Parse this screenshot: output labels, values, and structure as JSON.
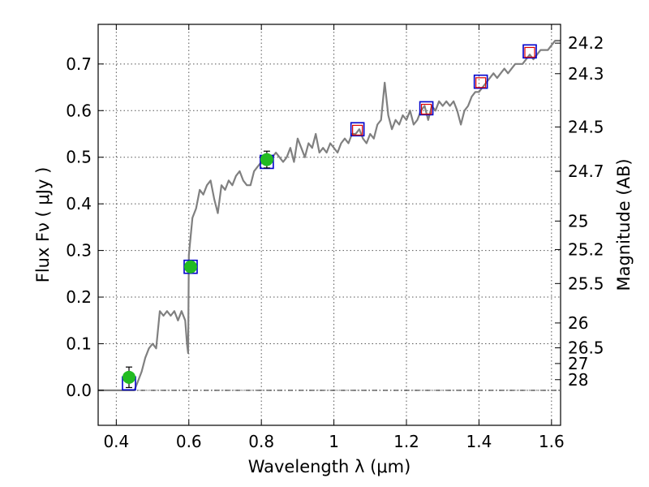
{
  "chart_data": {
    "type": "scatter",
    "xlabel": "Wavelength  λ (μm)",
    "ylabel": "Flux  Fν  ( μJy )",
    "y2label": "Magnitude (AB)",
    "xlim": [
      0.35,
      1.625
    ],
    "ylim": [
      -0.075,
      0.785
    ],
    "x_ticks": [
      0.4,
      0.6,
      0.8,
      1.0,
      1.2,
      1.4,
      1.6
    ],
    "x_tick_labels": [
      "0.4",
      "0.6",
      "0.8",
      "1",
      "1.2",
      "1.4",
      "1.6"
    ],
    "y_ticks": [
      0.0,
      0.1,
      0.2,
      0.3,
      0.4,
      0.5,
      0.6,
      0.7
    ],
    "y_tick_labels": [
      "0.0",
      "0.1",
      "0.2",
      "0.3",
      "0.4",
      "0.5",
      "0.6",
      "0.7"
    ],
    "mag_ticks": [
      {
        "label": "24.2",
        "flux": 0.7447
      },
      {
        "label": "24.3",
        "flux": 0.6792
      },
      {
        "label": "24.5",
        "flux": 0.5649
      },
      {
        "label": "24.7",
        "flux": 0.4699
      },
      {
        "label": "25",
        "flux": 0.3631
      },
      {
        "label": "25.2",
        "flux": 0.302
      },
      {
        "label": "25.5",
        "flux": 0.2291
      },
      {
        "label": "26",
        "flux": 0.1445
      },
      {
        "label": "26.5",
        "flux": 0.0912
      },
      {
        "label": "27",
        "flux": 0.0575
      },
      {
        "label": "28",
        "flux": 0.0229
      }
    ],
    "grid": true,
    "series": [
      {
        "kind": "line",
        "color": "#808080",
        "x": [
          0.35,
          0.41,
          0.43,
          0.45,
          0.46,
          0.47,
          0.48,
          0.49,
          0.5,
          0.51,
          0.52,
          0.53,
          0.54,
          0.55,
          0.56,
          0.57,
          0.58,
          0.59,
          0.595,
          0.598,
          0.6,
          0.605,
          0.61,
          0.62,
          0.63,
          0.64,
          0.65,
          0.66,
          0.67,
          0.68,
          0.69,
          0.7,
          0.71,
          0.72,
          0.73,
          0.74,
          0.75,
          0.76,
          0.77,
          0.78,
          0.79,
          0.8,
          0.81,
          0.82,
          0.83,
          0.84,
          0.85,
          0.86,
          0.87,
          0.88,
          0.89,
          0.9,
          0.91,
          0.92,
          0.93,
          0.94,
          0.95,
          0.96,
          0.97,
          0.98,
          0.99,
          1.0,
          1.01,
          1.02,
          1.03,
          1.04,
          1.05,
          1.06,
          1.07,
          1.08,
          1.09,
          1.1,
          1.11,
          1.12,
          1.13,
          1.14,
          1.15,
          1.16,
          1.17,
          1.18,
          1.19,
          1.2,
          1.21,
          1.22,
          1.23,
          1.24,
          1.25,
          1.26,
          1.27,
          1.28,
          1.29,
          1.3,
          1.31,
          1.32,
          1.33,
          1.34,
          1.35,
          1.36,
          1.37,
          1.38,
          1.39,
          1.4,
          1.41,
          1.42,
          1.43,
          1.44,
          1.45,
          1.46,
          1.47,
          1.48,
          1.49,
          1.5,
          1.51,
          1.52,
          1.53,
          1.54,
          1.55,
          1.56,
          1.57,
          1.58,
          1.59,
          1.6,
          1.61,
          1.625
        ],
        "y": [
          0.0,
          0.0,
          0.0,
          0.0,
          0.02,
          0.04,
          0.07,
          0.09,
          0.1,
          0.09,
          0.17,
          0.16,
          0.17,
          0.16,
          0.17,
          0.15,
          0.17,
          0.15,
          0.1,
          0.08,
          0.29,
          0.33,
          0.37,
          0.39,
          0.43,
          0.42,
          0.44,
          0.45,
          0.41,
          0.38,
          0.44,
          0.43,
          0.45,
          0.44,
          0.46,
          0.47,
          0.45,
          0.44,
          0.44,
          0.47,
          0.48,
          0.49,
          0.49,
          0.5,
          0.5,
          0.51,
          0.5,
          0.49,
          0.5,
          0.52,
          0.49,
          0.54,
          0.52,
          0.5,
          0.53,
          0.52,
          0.55,
          0.51,
          0.52,
          0.51,
          0.53,
          0.52,
          0.51,
          0.53,
          0.54,
          0.53,
          0.55,
          0.55,
          0.56,
          0.54,
          0.53,
          0.55,
          0.54,
          0.57,
          0.58,
          0.66,
          0.59,
          0.56,
          0.58,
          0.57,
          0.59,
          0.58,
          0.6,
          0.57,
          0.58,
          0.6,
          0.61,
          0.58,
          0.61,
          0.6,
          0.62,
          0.61,
          0.62,
          0.61,
          0.62,
          0.6,
          0.57,
          0.6,
          0.61,
          0.63,
          0.64,
          0.64,
          0.65,
          0.66,
          0.67,
          0.68,
          0.67,
          0.68,
          0.69,
          0.68,
          0.69,
          0.7,
          0.7,
          0.7,
          0.71,
          0.72,
          0.71,
          0.72,
          0.73,
          0.73,
          0.73,
          0.74,
          0.75,
          0.75
        ]
      },
      {
        "kind": "open-square",
        "color": "#0000cc",
        "x": [
          0.435,
          0.605,
          0.815,
          1.065,
          1.255,
          1.405,
          1.54
        ],
        "y": [
          0.015,
          0.265,
          0.49,
          0.56,
          0.605,
          0.662,
          0.727
        ]
      },
      {
        "kind": "open-square-small",
        "color": "#dd0000",
        "x": [
          1.065,
          1.255,
          1.405,
          1.54
        ],
        "y": [
          0.558,
          0.603,
          0.66,
          0.725
        ]
      },
      {
        "kind": "filled-circle",
        "color": "#22bb22",
        "x": [
          0.435,
          0.605,
          0.815
        ],
        "y": [
          0.028,
          0.265,
          0.495
        ],
        "yerr": [
          0.022,
          0.01,
          0.018
        ]
      }
    ],
    "reference_line_y": 0.0
  }
}
